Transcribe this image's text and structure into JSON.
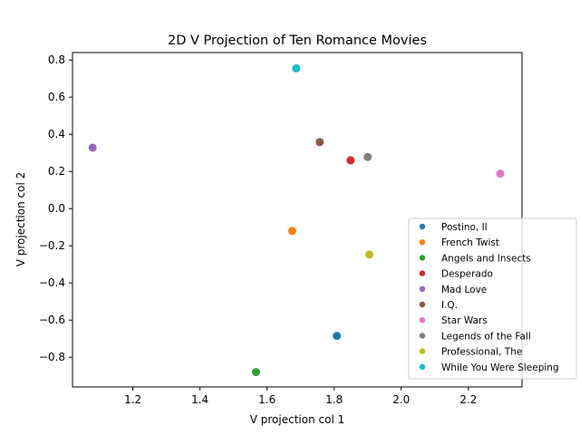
{
  "chart_data": {
    "type": "scatter",
    "title": "2D V Projection of Ten Romance Movies",
    "xlabel": "V projection col 1",
    "ylabel": "V projection col 2",
    "xlim": [
      1.02,
      2.36
    ],
    "ylim": [
      -0.96,
      0.84
    ],
    "xticks": [
      1.2,
      1.4,
      1.6,
      1.8,
      2.0,
      2.2
    ],
    "xtick_labels": [
      "1.2",
      "1.4",
      "1.6",
      "1.8",
      "2.0",
      "2.2"
    ],
    "yticks": [
      -0.8,
      -0.6,
      -0.4,
      -0.2,
      0.0,
      0.2,
      0.4,
      0.6,
      0.8
    ],
    "ytick_labels": [
      "−0.8",
      "−0.6",
      "−0.4",
      "−0.2",
      "0.0",
      "0.2",
      "0.4",
      "0.6",
      "0.8"
    ],
    "grid": false,
    "legend_position": "lower-right",
    "series": [
      {
        "name": "Postino, Il",
        "color": "#1f77b4",
        "x": 1.808,
        "y": -0.685
      },
      {
        "name": "French Twist",
        "color": "#ff7f0e",
        "x": 1.675,
        "y": -0.12
      },
      {
        "name": "Angels and Insects",
        "color": "#2ca02c",
        "x": 1.567,
        "y": -0.88
      },
      {
        "name": "Desperado",
        "color": "#d62728",
        "x": 1.849,
        "y": 0.26
      },
      {
        "name": "Mad Love",
        "color": "#9467bd",
        "x": 1.08,
        "y": 0.328
      },
      {
        "name": "I.Q.",
        "color": "#8c564b",
        "x": 1.757,
        "y": 0.358
      },
      {
        "name": "Star Wars",
        "color": "#e377c2",
        "x": 2.295,
        "y": 0.188
      },
      {
        "name": "Legends of the Fall",
        "color": "#7f7f7f",
        "x": 1.9,
        "y": 0.278
      },
      {
        "name": "Professional, The",
        "color": "#bcbd22",
        "x": 1.905,
        "y": -0.247
      },
      {
        "name": "While You Were Sleeping",
        "color": "#17becf",
        "x": 1.687,
        "y": 0.755
      }
    ]
  }
}
